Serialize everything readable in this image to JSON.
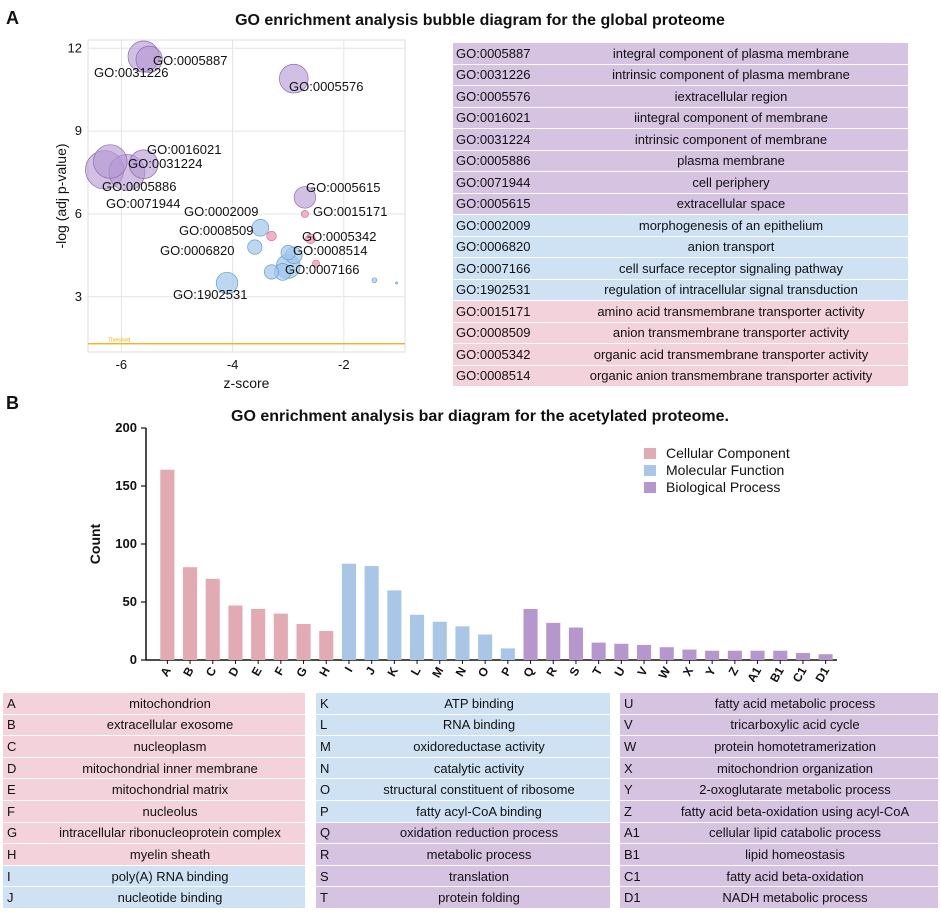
{
  "panel_a_label": "A",
  "panel_b_label": "B",
  "colors": {
    "cellular_component": "#f3d2db",
    "molecular_function": "#cfe2f3",
    "biological_process": "#d6c3e1",
    "bar_cc": "#e2aab3",
    "bar_mf": "#a9c6e6",
    "bar_bp": "#b597ce",
    "threshold": "#f2a900"
  },
  "chart_data": [
    {
      "type": "scatter",
      "title": "GO enrichment analysis bubble diagram for the global proteome",
      "xlabel": "z-score",
      "ylabel": "-log (adj p-value)",
      "xlim": [
        -6.6,
        -0.9
      ],
      "ylim": [
        1,
        12.3
      ],
      "xticks": [
        -6,
        -4,
        -2
      ],
      "yticks": [
        3,
        6,
        9,
        12
      ],
      "grid": true,
      "threshold": {
        "label": "Threshold",
        "y": 1.3
      },
      "points": [
        {
          "label": "GO:0005887",
          "x": -5.6,
          "y": 11.7,
          "size": 1.3,
          "group": "bp"
        },
        {
          "label": "GO:0031226",
          "x": -5.5,
          "y": 11.6,
          "size": 1.1,
          "group": "bp"
        },
        {
          "label": "GO:0005576",
          "x": -2.9,
          "y": 10.9,
          "size": 1.2,
          "group": "bp"
        },
        {
          "label": "GO:0016021",
          "x": -6.2,
          "y": 7.9,
          "size": 1.4,
          "group": "bp"
        },
        {
          "label": "GO:0031224",
          "x": -5.6,
          "y": 7.8,
          "size": 1.2,
          "group": "bp"
        },
        {
          "label": "GO:0005886",
          "x": -6.3,
          "y": 7.6,
          "size": 1.6,
          "group": "bp"
        },
        {
          "label": "GO:0071944",
          "x": -5.9,
          "y": 7.5,
          "size": 1.5,
          "group": "bp"
        },
        {
          "label": "GO:0005615",
          "x": -2.7,
          "y": 6.6,
          "size": 0.9,
          "group": "bp"
        },
        {
          "label": "GO:0015171",
          "x": -2.7,
          "y": 6.0,
          "size": 0.3,
          "group": "cc"
        },
        {
          "label": "GO:0002009",
          "x": -3.5,
          "y": 5.5,
          "size": 0.7,
          "group": "mf"
        },
        {
          "label": "GO:0008509",
          "x": -3.3,
          "y": 5.2,
          "size": 0.4,
          "group": "cc"
        },
        {
          "label": "GO:0005342",
          "x": -2.6,
          "y": 5.1,
          "size": 0.4,
          "group": "cc"
        },
        {
          "label": "GO:0006820",
          "x": -3.6,
          "y": 4.8,
          "size": 0.6,
          "group": "mf"
        },
        {
          "label": "GO:0008514",
          "x": -2.5,
          "y": 4.2,
          "size": 0.3,
          "group": "cc"
        },
        {
          "label": "GO:0007166",
          "x": -3.0,
          "y": 4.1,
          "size": 1.0,
          "group": "mf"
        },
        {
          "label": "GO:1902531",
          "x": -4.1,
          "y": 3.5,
          "size": 0.9,
          "group": "mf"
        },
        {
          "label": "",
          "x": -3.3,
          "y": 3.9,
          "size": 0.6,
          "group": "mf"
        },
        {
          "label": "",
          "x": -3.1,
          "y": 3.9,
          "size": 0.7,
          "group": "mf"
        },
        {
          "label": "",
          "x": -2.9,
          "y": 4.5,
          "size": 0.7,
          "group": "mf"
        },
        {
          "label": "",
          "x": -3.0,
          "y": 4.6,
          "size": 0.6,
          "group": "mf"
        },
        {
          "label": "",
          "x": -1.45,
          "y": 3.6,
          "size": 0.2,
          "group": "mf"
        },
        {
          "label": "",
          "x": -1.05,
          "y": 3.5,
          "size": 0.05,
          "group": "mf"
        }
      ],
      "table": [
        {
          "id": "GO:0005887",
          "term": "integral component of plasma membrane",
          "group": "bp"
        },
        {
          "id": "GO:0031226",
          "term": "intrinsic component of plasma membrane",
          "group": "bp"
        },
        {
          "id": "GO:0005576",
          "term": "iextracellular region",
          "group": "bp"
        },
        {
          "id": "GO:0016021",
          "term": "iintegral component of membrane",
          "group": "bp"
        },
        {
          "id": "GO:0031224",
          "term": "intrinsic component of membrane",
          "group": "bp"
        },
        {
          "id": "GO:0005886",
          "term": "plasma membrane",
          "group": "bp"
        },
        {
          "id": "GO:0071944",
          "term": "cell periphery",
          "group": "bp"
        },
        {
          "id": "GO:0005615",
          "term": "extracellular space",
          "group": "bp"
        },
        {
          "id": "GO:0002009",
          "term": "morphogenesis of an epithelium",
          "group": "mf"
        },
        {
          "id": "GO:0006820",
          "term": "anion transport",
          "group": "mf"
        },
        {
          "id": "GO:0007166",
          "term": "cell surface receptor signaling pathway",
          "group": "mf"
        },
        {
          "id": "GO:1902531",
          "term": "regulation of intracellular signal transduction",
          "group": "mf"
        },
        {
          "id": "GO:0015171",
          "term": "amino acid transmembrane transporter activity",
          "group": "cc"
        },
        {
          "id": "GO:0008509",
          "term": "anion transmembrane transporter activity",
          "group": "cc"
        },
        {
          "id": "GO:0005342",
          "term": "organic acid transmembrane transporter activity",
          "group": "cc"
        },
        {
          "id": "GO:0008514",
          "term": "organic anion transmembrane transporter activity",
          "group": "cc"
        }
      ]
    },
    {
      "type": "bar",
      "title": "GO enrichment analysis bar diagram for the acetylated proteome.",
      "xlabel": "",
      "ylabel": "Count",
      "ylim": [
        0,
        200
      ],
      "yticks": [
        0,
        50,
        100,
        150,
        200
      ],
      "legend_position": "top-right",
      "legend": [
        {
          "name": "Cellular Component",
          "group": "cc"
        },
        {
          "name": "Molecular Function",
          "group": "mf"
        },
        {
          "name": "Biological Process",
          "group": "bp"
        }
      ],
      "categories": [
        "A",
        "B",
        "C",
        "D",
        "E",
        "F",
        "G",
        "H",
        "I",
        "J",
        "K",
        "L",
        "M",
        "N",
        "O",
        "P",
        "Q",
        "R",
        "S",
        "T",
        "U",
        "V",
        "W",
        "X",
        "Y",
        "Z",
        "A1",
        "B1",
        "C1",
        "D1"
      ],
      "values": [
        164,
        80,
        70,
        47,
        44,
        40,
        31,
        25,
        83,
        81,
        60,
        39,
        33,
        29,
        22,
        10,
        44,
        32,
        28,
        15,
        14,
        13,
        11,
        9,
        8,
        8,
        8,
        8,
        6,
        5
      ],
      "groups": [
        "cc",
        "cc",
        "cc",
        "cc",
        "cc",
        "cc",
        "cc",
        "cc",
        "mf",
        "mf",
        "mf",
        "mf",
        "mf",
        "mf",
        "mf",
        "mf",
        "bp",
        "bp",
        "bp",
        "bp",
        "bp",
        "bp",
        "bp",
        "bp",
        "bp",
        "bp",
        "bp",
        "bp",
        "bp",
        "bp"
      ],
      "tables": [
        [
          {
            "id": "A",
            "term": "mitochondrion",
            "group": "cc"
          },
          {
            "id": "B",
            "term": "extracellular exosome",
            "group": "cc"
          },
          {
            "id": "C",
            "term": "nucleoplasm",
            "group": "cc"
          },
          {
            "id": "D",
            "term": "mitochondrial inner membrane",
            "group": "cc"
          },
          {
            "id": "E",
            "term": "mitochondrial matrix",
            "group": "cc"
          },
          {
            "id": "F",
            "term": "nucleolus",
            "group": "cc"
          },
          {
            "id": "G",
            "term": "intracellular ribonucleoprotein complex",
            "group": "cc"
          },
          {
            "id": "H",
            "term": "myelin sheath",
            "group": "cc"
          },
          {
            "id": "I",
            "term": "poly(A) RNA binding",
            "group": "mf"
          },
          {
            "id": "J",
            "term": "nucleotide binding",
            "group": "mf"
          }
        ],
        [
          {
            "id": "K",
            "term": "ATP binding",
            "group": "mf"
          },
          {
            "id": "L",
            "term": "RNA binding",
            "group": "mf"
          },
          {
            "id": "M",
            "term": "oxidoreductase activity",
            "group": "mf"
          },
          {
            "id": "N",
            "term": "catalytic activity",
            "group": "mf"
          },
          {
            "id": "O",
            "term": "structural constituent of ribosome",
            "group": "mf"
          },
          {
            "id": "P",
            "term": "fatty acyl-CoA binding",
            "group": "mf"
          },
          {
            "id": "Q",
            "term": "oxidation reduction process",
            "group": "bp"
          },
          {
            "id": "R",
            "term": "metabolic process",
            "group": "bp"
          },
          {
            "id": "S",
            "term": "translation",
            "group": "bp"
          },
          {
            "id": "T",
            "term": "protein folding",
            "group": "bp"
          }
        ],
        [
          {
            "id": "U",
            "term": "fatty acid metabolic process",
            "group": "bp"
          },
          {
            "id": "V",
            "term": "tricarboxylic acid cycle",
            "group": "bp"
          },
          {
            "id": "W",
            "term": "protein homotetramerization",
            "group": "bp"
          },
          {
            "id": "X",
            "term": "mitochondrion organization",
            "group": "bp"
          },
          {
            "id": "Y",
            "term": "2-oxoglutarate metabolic process",
            "group": "bp"
          },
          {
            "id": "Z",
            "term": "fatty acid beta-oxidation using acyl-CoA",
            "group": "bp"
          },
          {
            "id": "A1",
            "term": "cellular lipid catabolic process",
            "group": "bp"
          },
          {
            "id": "B1",
            "term": "lipid homeostasis",
            "group": "bp"
          },
          {
            "id": "C1",
            "term": "fatty acid beta-oxidation",
            "group": "bp"
          },
          {
            "id": "D1",
            "term": "NADH metabolic process",
            "group": "bp"
          }
        ]
      ]
    }
  ]
}
